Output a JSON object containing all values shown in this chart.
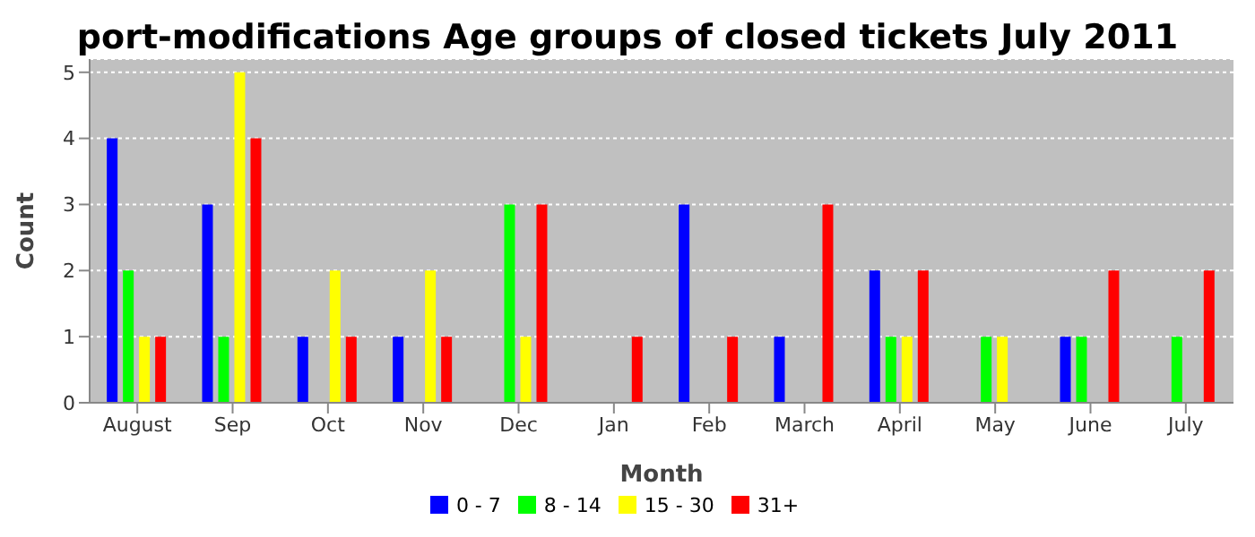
{
  "chart_data": {
    "type": "bar",
    "title": "port-modifications Age groups of closed tickets July 2011",
    "xlabel": "Month",
    "ylabel": "Count",
    "categories": [
      "August",
      "Sep",
      "Oct",
      "Nov",
      "Dec",
      "Jan",
      "Feb",
      "March",
      "April",
      "May",
      "June",
      "July"
    ],
    "series": [
      {
        "name": "0 - 7",
        "color": "#0000ff",
        "values": [
          4,
          3,
          1,
          1,
          0,
          0,
          3,
          1,
          2,
          0,
          1,
          0
        ]
      },
      {
        "name": "8 - 14",
        "color": "#00ff00",
        "values": [
          2,
          1,
          0,
          0,
          3,
          0,
          0,
          0,
          1,
          1,
          1,
          1
        ]
      },
      {
        "name": "15 - 30",
        "color": "#ffff00",
        "values": [
          1,
          5,
          2,
          2,
          1,
          0,
          0,
          0,
          1,
          1,
          0,
          0
        ]
      },
      {
        "name": "31+",
        "color": "#ff0000",
        "values": [
          1,
          4,
          1,
          1,
          3,
          1,
          1,
          3,
          2,
          0,
          2,
          2
        ]
      }
    ],
    "ylim": [
      0,
      5.2
    ],
    "yticks": [
      0,
      1,
      2,
      3,
      4,
      5
    ],
    "grid": "y",
    "legend": "bottom"
  }
}
